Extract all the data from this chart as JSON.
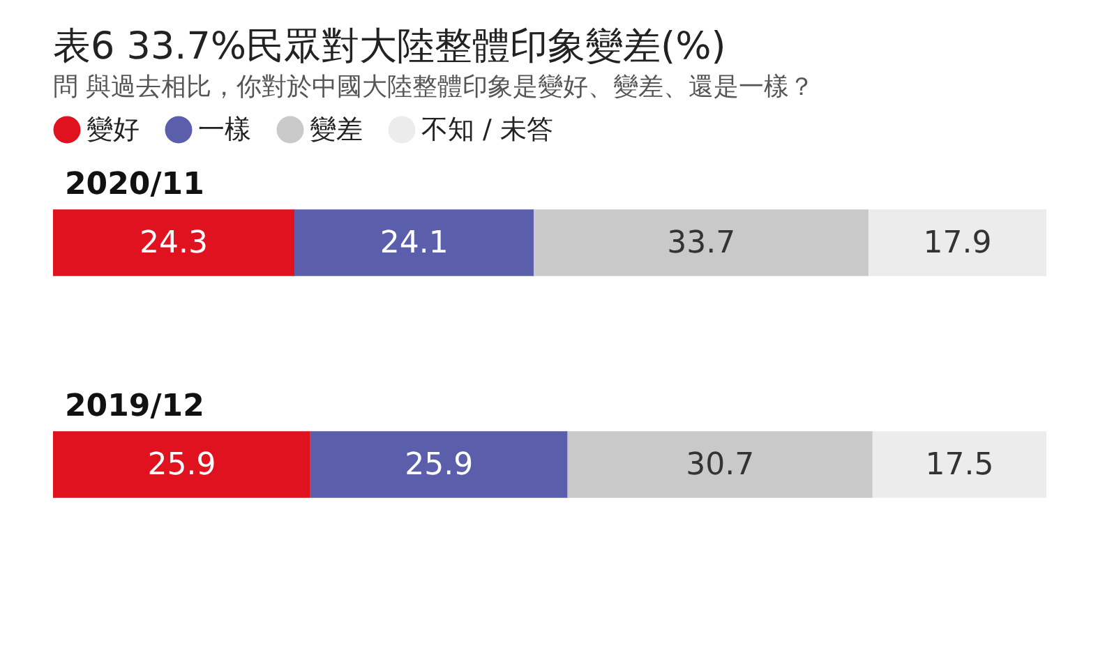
{
  "chart_data": {
    "type": "bar",
    "orientation": "horizontal",
    "stacked": true,
    "title": "表6 33.7%民眾對大陸整體印象變差(%)",
    "subtitle": "問 與過去相比，你對於中國大陸整體印象是變好、變差、還是一樣？",
    "categories": [
      "2020/11",
      "2019/12"
    ],
    "series": [
      {
        "name": "變好",
        "color": "#e1121f",
        "values": [
          24.3,
          25.9
        ]
      },
      {
        "name": "一樣",
        "color": "#5a5eab",
        "values": [
          24.1,
          25.9
        ]
      },
      {
        "name": "變差",
        "color": "#c9c9c9",
        "values": [
          33.7,
          30.7
        ]
      },
      {
        "name": "不知 / 未答",
        "color": "#ececec",
        "values": [
          17.9,
          17.5
        ]
      }
    ],
    "xlim": [
      0,
      100
    ],
    "data_labels": true,
    "legend": "top left"
  }
}
